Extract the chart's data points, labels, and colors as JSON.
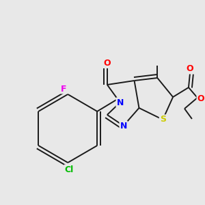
{
  "background_color": "#e8e8e8",
  "bond_color": "#1a1a1a",
  "atom_colors": {
    "F": "#ee00ee",
    "Cl": "#00bb00",
    "N": "#0000ff",
    "O": "#ff0000",
    "S": "#cccc00",
    "C": "#1a1a1a"
  },
  "figsize": [
    3.0,
    3.0
  ],
  "dpi": 100
}
